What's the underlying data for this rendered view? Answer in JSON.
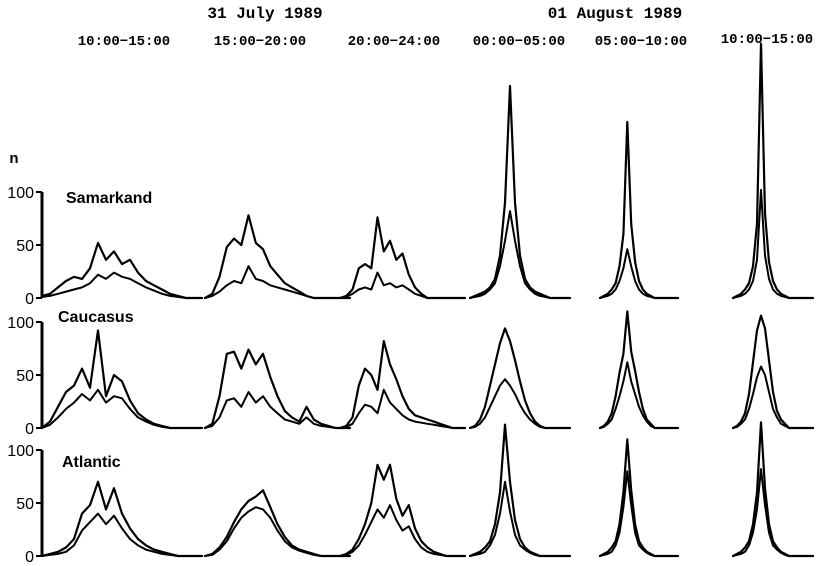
{
  "chart_data": {
    "type": "line",
    "title": "",
    "dates": [
      {
        "label": "31 July 1989",
        "windows": [
          0,
          1,
          2
        ]
      },
      {
        "label": "01 August 1989",
        "windows": [
          3,
          4,
          5
        ]
      }
    ],
    "time_windows": [
      "10:00−15:00",
      "15:00−20:00",
      "20:00−24:00",
      "00:00−05:00",
      "05:00−10:00",
      "10:00−15:00"
    ],
    "ylabel": "n",
    "ylim": [
      0,
      100
    ],
    "yticks": [
      "0",
      "50",
      "100"
    ],
    "x": [
      0,
      1,
      2,
      3,
      4,
      5,
      6,
      7,
      8,
      9,
      10,
      11,
      12,
      13,
      14,
      15,
      16,
      17,
      18,
      19,
      20
    ],
    "stations": [
      {
        "name": "Samarkand",
        "panels": [
          {
            "upper": [
              2,
              4,
              10,
              16,
              20,
              18,
              28,
              52,
              36,
              44,
              32,
              36,
              24,
              16,
              12,
              8,
              4,
              2,
              0,
              0,
              0
            ],
            "lower": [
              1,
              2,
              4,
              6,
              8,
              10,
              14,
              22,
              18,
              24,
              20,
              18,
              14,
              10,
              7,
              4,
              2,
              1,
              0,
              0,
              0
            ]
          },
          {
            "upper": [
              0,
              4,
              20,
              48,
              56,
              50,
              78,
              52,
              46,
              30,
              22,
              14,
              10,
              6,
              2,
              0,
              0,
              0,
              0,
              0,
              0
            ],
            "lower": [
              0,
              2,
              6,
              12,
              16,
              14,
              30,
              18,
              16,
              12,
              10,
              8,
              6,
              4,
              2,
              0,
              0,
              0,
              0,
              0,
              0
            ]
          },
          {
            "upper": [
              0,
              2,
              8,
              28,
              32,
              28,
              76,
              44,
              54,
              36,
              42,
              22,
              10,
              4,
              0,
              0,
              0,
              0,
              0,
              0,
              0
            ],
            "lower": [
              0,
              1,
              4,
              8,
              10,
              8,
              24,
              12,
              14,
              10,
              12,
              8,
              4,
              2,
              0,
              0,
              0,
              0,
              0,
              0,
              0
            ]
          },
          {
            "upper": [
              0,
              2,
              4,
              6,
              10,
              18,
              40,
              90,
              200,
              90,
              40,
              18,
              10,
              6,
              4,
              2,
              0,
              0,
              0,
              0,
              0
            ],
            "lower": [
              0,
              1,
              2,
              4,
              8,
              14,
              30,
              54,
              82,
              54,
              30,
              14,
              8,
              4,
              2,
              1,
              0,
              0,
              0,
              0,
              0
            ]
          },
          {
            "upper": [
              0,
              2,
              4,
              8,
              14,
              30,
              60,
              166,
              70,
              34,
              16,
              8,
              4,
              2,
              0,
              0,
              0,
              0,
              0,
              0,
              0
            ],
            "lower": [
              0,
              1,
              2,
              4,
              8,
              16,
              28,
              46,
              30,
              16,
              8,
              4,
              2,
              1,
              0,
              0,
              0,
              0,
              0,
              0,
              0
            ]
          },
          {
            "upper": [
              0,
              2,
              4,
              8,
              14,
              30,
              70,
              240,
              80,
              34,
              16,
              8,
              4,
              2,
              0,
              0,
              0,
              0,
              0,
              0,
              0
            ],
            "lower": [
              0,
              1,
              2,
              4,
              8,
              16,
              36,
              102,
              40,
              18,
              8,
              4,
              2,
              1,
              0,
              0,
              0,
              0,
              0,
              0,
              0
            ]
          }
        ]
      },
      {
        "name": "Caucasus",
        "panels": [
          {
            "upper": [
              0,
              6,
              20,
              34,
              40,
              56,
              38,
              92,
              30,
              50,
              44,
              26,
              14,
              8,
              4,
              2,
              0,
              0,
              0,
              0,
              0
            ],
            "lower": [
              0,
              3,
              10,
              18,
              24,
              32,
              26,
              36,
              24,
              30,
              28,
              18,
              10,
              6,
              3,
              1,
              0,
              0,
              0,
              0,
              0
            ]
          },
          {
            "upper": [
              0,
              4,
              30,
              70,
              72,
              56,
              74,
              60,
              70,
              48,
              30,
              16,
              10,
              6,
              20,
              8,
              4,
              2,
              0,
              0,
              0
            ],
            "lower": [
              0,
              2,
              10,
              26,
              28,
              20,
              34,
              24,
              30,
              20,
              14,
              8,
              6,
              4,
              10,
              4,
              2,
              1,
              0,
              0,
              0
            ]
          },
          {
            "upper": [
              0,
              2,
              10,
              40,
              56,
              50,
              36,
              82,
              60,
              46,
              30,
              18,
              12,
              10,
              8,
              6,
              4,
              2,
              0,
              0,
              0
            ],
            "lower": [
              0,
              1,
              4,
              14,
              22,
              20,
              14,
              36,
              24,
              18,
              12,
              8,
              6,
              5,
              4,
              3,
              2,
              1,
              0,
              0,
              0
            ]
          },
          {
            "upper": [
              0,
              2,
              8,
              20,
              40,
              60,
              80,
              94,
              82,
              64,
              44,
              26,
              14,
              6,
              2,
              0,
              0,
              0,
              0,
              0,
              0
            ],
            "lower": [
              0,
              1,
              4,
              10,
              20,
              30,
              40,
              46,
              40,
              32,
              22,
              14,
              8,
              4,
              1,
              0,
              0,
              0,
              0,
              0,
              0
            ]
          },
          {
            "upper": [
              0,
              2,
              6,
              14,
              30,
              52,
              70,
              110,
              72,
              54,
              34,
              18,
              8,
              4,
              0,
              0,
              0,
              0,
              0,
              0,
              0
            ],
            "lower": [
              0,
              1,
              4,
              8,
              18,
              30,
              44,
              62,
              44,
              32,
              20,
              12,
              6,
              2,
              0,
              0,
              0,
              0,
              0,
              0,
              0
            ]
          },
          {
            "upper": [
              0,
              2,
              6,
              14,
              32,
              62,
              92,
              106,
              94,
              64,
              34,
              16,
              8,
              4,
              0,
              0,
              0,
              0,
              0,
              0,
              0
            ],
            "lower": [
              0,
              1,
              4,
              8,
              18,
              32,
              48,
              58,
              50,
              34,
              18,
              10,
              4,
              2,
              0,
              0,
              0,
              0,
              0,
              0,
              0
            ]
          }
        ]
      },
      {
        "name": "Atlantic",
        "panels": [
          {
            "upper": [
              0,
              2,
              4,
              8,
              16,
              40,
              48,
              70,
              44,
              64,
              40,
              26,
              16,
              10,
              6,
              4,
              2,
              0,
              0,
              0,
              0
            ],
            "lower": [
              0,
              1,
              2,
              4,
              10,
              24,
              32,
              40,
              30,
              38,
              26,
              16,
              10,
              6,
              4,
              2,
              1,
              0,
              0,
              0,
              0
            ]
          },
          {
            "upper": [
              0,
              2,
              8,
              18,
              32,
              44,
              52,
              56,
              62,
              46,
              30,
              18,
              10,
              6,
              4,
              2,
              0,
              0,
              0,
              0,
              0
            ],
            "lower": [
              0,
              1,
              6,
              14,
              26,
              36,
              42,
              46,
              44,
              36,
              24,
              14,
              8,
              5,
              3,
              1,
              0,
              0,
              0,
              0,
              0
            ]
          },
          {
            "upper": [
              0,
              2,
              6,
              16,
              30,
              50,
              86,
              72,
              86,
              54,
              38,
              48,
              26,
              14,
              8,
              4,
              2,
              0,
              0,
              0,
              0
            ],
            "lower": [
              0,
              1,
              4,
              10,
              20,
              32,
              44,
              36,
              48,
              34,
              24,
              28,
              16,
              8,
              4,
              2,
              1,
              0,
              0,
              0,
              0
            ]
          },
          {
            "upper": [
              0,
              2,
              4,
              8,
              14,
              30,
              60,
              124,
              70,
              34,
              16,
              8,
              4,
              2,
              0,
              0,
              0,
              0,
              0,
              0,
              0
            ],
            "lower": [
              0,
              1,
              2,
              4,
              10,
              20,
              40,
              70,
              42,
              20,
              10,
              6,
              3,
              1,
              0,
              0,
              0,
              0,
              0,
              0,
              0
            ]
          },
          {
            "upper": [
              0,
              2,
              4,
              8,
              14,
              30,
              60,
              110,
              62,
              30,
              14,
              8,
              4,
              2,
              0,
              0,
              0,
              0,
              0,
              0,
              0
            ],
            "lower": [
              0,
              1,
              2,
              4,
              10,
              22,
              46,
              80,
              48,
              22,
              10,
              6,
              3,
              1,
              0,
              0,
              0,
              0,
              0,
              0,
              0
            ]
          },
          {
            "upper": [
              0,
              2,
              4,
              8,
              14,
              30,
              60,
              126,
              64,
              30,
              14,
              8,
              4,
              2,
              0,
              0,
              0,
              0,
              0,
              0,
              0
            ],
            "lower": [
              0,
              1,
              2,
              4,
              10,
              22,
              44,
              82,
              48,
              22,
              10,
              6,
              3,
              1,
              0,
              0,
              0,
              0,
              0,
              0,
              0
            ]
          }
        ]
      }
    ]
  }
}
